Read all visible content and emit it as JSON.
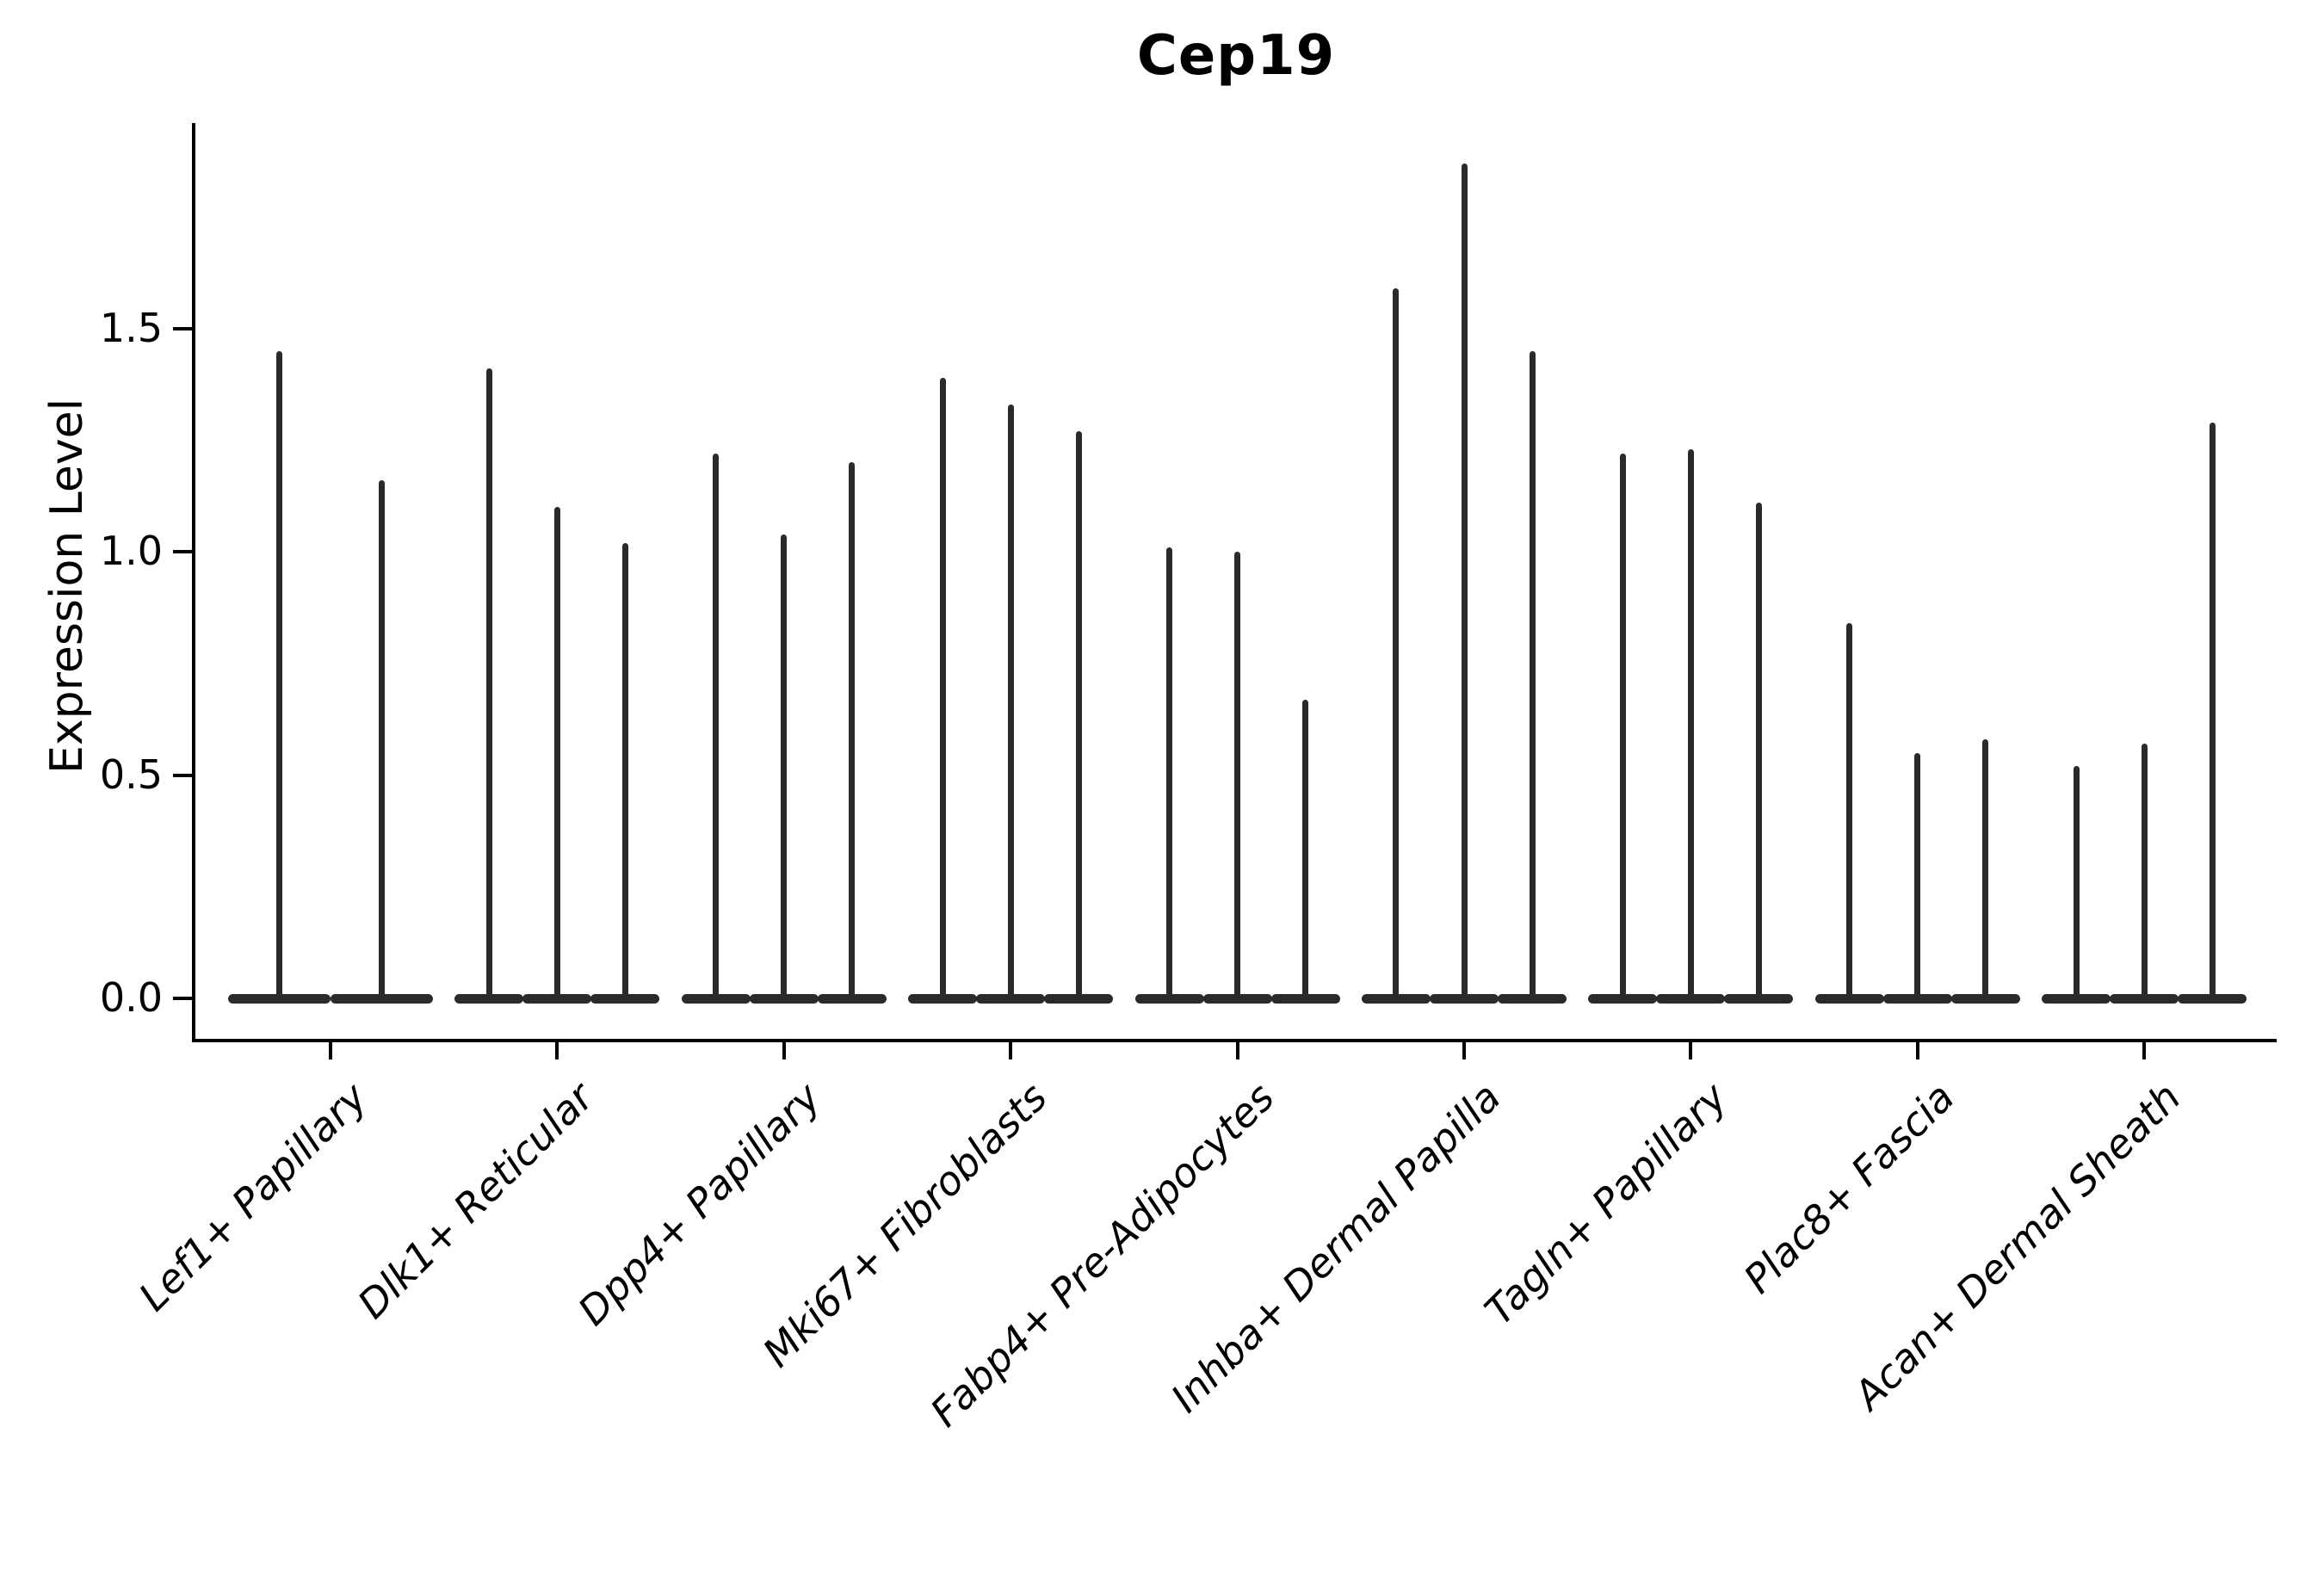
{
  "chart_data": {
    "type": "violin",
    "title": "Cep19",
    "ylabel": "Expression Level",
    "xlabel": "",
    "ytick_labels": [
      "0.0",
      "0.5",
      "1.0",
      "1.5"
    ],
    "ytick_values": [
      0.0,
      0.5,
      1.0,
      1.5
    ],
    "ylim": [
      -0.09,
      1.96
    ],
    "grid": false,
    "legend_position": "none",
    "violin_color": "#2a2a2a",
    "axis_color": "#000000",
    "background_color": "#ffffff",
    "categories": [
      "Lef1+ Papillary",
      "Dlk1+ Reticular",
      "Dpp4+ Papillary",
      "Mki67+ Fibroblasts",
      "Fabp4+ Pre-Adipocytes",
      "Inhba+ Dermal Papilla",
      "Tagln+ Papillary",
      "Plac8+ Fascia",
      "Acan+ Dermal Sheath"
    ],
    "groups": [
      {
        "label": "Lef1+ Papillary",
        "violin_peak_values": [
          1.45,
          1.16
        ]
      },
      {
        "label": "Dlk1+ Reticular",
        "violin_peak_values": [
          1.41,
          1.1,
          1.02
        ]
      },
      {
        "label": "Dpp4+ Papillary",
        "violin_peak_values": [
          1.22,
          1.04,
          1.2
        ]
      },
      {
        "label": "Mki67+ Fibroblasts",
        "violin_peak_values": [
          1.39,
          1.33,
          1.27
        ]
      },
      {
        "label": "Fabp4+ Pre-Adipocytes",
        "violin_peak_values": [
          1.01,
          1.0,
          0.67
        ]
      },
      {
        "label": "Inhba+ Dermal Papilla",
        "violin_peak_values": [
          1.59,
          1.87,
          1.45
        ]
      },
      {
        "label": "Tagln+ Papillary",
        "violin_peak_values": [
          1.22,
          1.23,
          1.11
        ]
      },
      {
        "label": "Plac8+ Fascia",
        "violin_peak_values": [
          0.84,
          0.55,
          0.58
        ]
      },
      {
        "label": "Acan+ Dermal Sheath",
        "violin_peak_values": [
          0.52,
          0.57,
          1.29
        ]
      }
    ],
    "violin_min_value": 0.0
  }
}
